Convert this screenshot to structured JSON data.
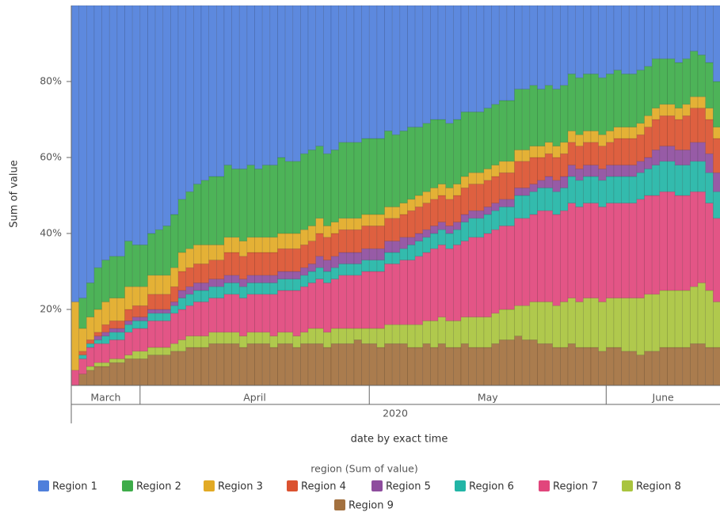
{
  "chart_data": {
    "type": "stacked_bar_100",
    "y_label": "Sum of value",
    "x_label": "date by exact time",
    "x_group_label": "2020",
    "legend_title": "region (Sum of value)",
    "ylim": [
      0,
      100
    ],
    "yticks": [
      {
        "value": 20,
        "label": "20%"
      },
      {
        "value": 40,
        "label": "40%"
      },
      {
        "value": 60,
        "label": "60%"
      },
      {
        "value": 80,
        "label": "80%"
      }
    ],
    "categories": [
      "March",
      "March",
      "March",
      "March",
      "March",
      "March",
      "March",
      "March",
      "March",
      "April",
      "April",
      "April",
      "April",
      "April",
      "April",
      "April",
      "April",
      "April",
      "April",
      "April",
      "April",
      "April",
      "April",
      "April",
      "April",
      "April",
      "April",
      "April",
      "April",
      "April",
      "April",
      "April",
      "April",
      "April",
      "April",
      "April",
      "April",
      "April",
      "April",
      "May",
      "May",
      "May",
      "May",
      "May",
      "May",
      "May",
      "May",
      "May",
      "May",
      "May",
      "May",
      "May",
      "May",
      "May",
      "May",
      "May",
      "May",
      "May",
      "May",
      "May",
      "May",
      "May",
      "May",
      "May",
      "May",
      "May",
      "May",
      "May",
      "May",
      "May",
      "June",
      "June",
      "June",
      "June",
      "June",
      "June",
      "June",
      "June",
      "June",
      "June",
      "June",
      "June",
      "June",
      "June",
      "June"
    ],
    "series": [
      {
        "name": "Region 1",
        "color": "#4f7fdb",
        "values": [
          78,
          77,
          73,
          69,
          67,
          66,
          66,
          62,
          63,
          63,
          60,
          59,
          58,
          55,
          51,
          49,
          47,
          46,
          45,
          45,
          42,
          43,
          43,
          42,
          43,
          42,
          42,
          40,
          41,
          41,
          39,
          38,
          37,
          39,
          38,
          36,
          36,
          36,
          35,
          35,
          35,
          33,
          34,
          33,
          32,
          32,
          31,
          30,
          30,
          31,
          30,
          28,
          28,
          28,
          27,
          26,
          25,
          25,
          22,
          22,
          21,
          22,
          21,
          22,
          21,
          18,
          19,
          18,
          18,
          19,
          18,
          17,
          18,
          18,
          17,
          16,
          14,
          14,
          14,
          15,
          14,
          12,
          13,
          15,
          20
        ]
      },
      {
        "name": "Region 2",
        "color": "#3eac4a",
        "values": [
          0,
          8,
          9,
          11,
          11,
          11,
          11,
          12,
          11,
          11,
          11,
          12,
          13,
          14,
          14,
          15,
          16,
          17,
          18,
          18,
          19,
          18,
          19,
          19,
          18,
          19,
          19,
          20,
          19,
          19,
          20,
          20,
          19,
          19,
          19,
          20,
          20,
          20,
          20,
          20,
          20,
          20,
          19,
          19,
          19,
          18,
          18,
          18,
          17,
          17,
          17,
          17,
          16,
          16,
          16,
          16,
          16,
          16,
          16,
          16,
          16,
          15,
          15,
          15,
          15,
          15,
          15,
          15,
          15,
          15,
          15,
          15,
          14,
          14,
          14,
          13,
          13,
          12,
          12,
          12,
          12,
          12,
          11,
          12,
          12
        ]
      },
      {
        "name": "Region 3",
        "color": "#e2aa25",
        "values": [
          18,
          6,
          6,
          6,
          6,
          6,
          6,
          6,
          5,
          5,
          5,
          5,
          5,
          5,
          5,
          5,
          5,
          5,
          4,
          4,
          4,
          4,
          4,
          4,
          4,
          4,
          4,
          4,
          4,
          4,
          4,
          4,
          4,
          3,
          3,
          3,
          3,
          3,
          3,
          3,
          3,
          3,
          3,
          3,
          3,
          3,
          3,
          3,
          3,
          3,
          3,
          3,
          3,
          3,
          3,
          3,
          3,
          3,
          3,
          3,
          3,
          3,
          3,
          3,
          3,
          3,
          3,
          3,
          3,
          3,
          3,
          3,
          3,
          3,
          3,
          3,
          3,
          3,
          3,
          3,
          3,
          3,
          3,
          3,
          3
        ]
      },
      {
        "name": "Region 4",
        "color": "#db5230",
        "values": [
          0,
          1,
          1,
          1,
          2,
          2,
          2,
          3,
          3,
          3,
          4,
          4,
          4,
          4,
          5,
          5,
          5,
          5,
          5,
          5,
          6,
          6,
          6,
          6,
          6,
          6,
          6,
          6,
          6,
          6,
          6,
          6,
          6,
          6,
          6,
          6,
          6,
          6,
          6,
          6,
          6,
          6,
          6,
          6,
          7,
          7,
          7,
          7,
          7,
          7,
          7,
          7,
          7,
          7,
          7,
          7,
          7,
          7,
          7,
          7,
          7,
          6,
          6,
          6,
          6,
          6,
          6,
          6,
          6,
          6,
          6,
          7,
          7,
          7,
          7,
          8,
          8,
          8,
          8,
          8,
          9,
          9,
          9,
          9,
          9
        ]
      },
      {
        "name": "Region 5",
        "color": "#8e4d9e",
        "values": [
          0,
          0,
          0,
          1,
          1,
          1,
          1,
          1,
          1,
          1,
          1,
          1,
          1,
          1,
          2,
          2,
          2,
          2,
          2,
          2,
          2,
          2,
          2,
          2,
          2,
          2,
          2,
          2,
          2,
          2,
          2,
          2,
          3,
          3,
          3,
          3,
          3,
          3,
          3,
          3,
          3,
          3,
          3,
          3,
          2,
          2,
          2,
          2,
          2,
          2,
          2,
          2,
          2,
          2,
          2,
          2,
          2,
          2,
          2,
          2,
          2,
          2,
          3,
          3,
          3,
          3,
          3,
          3,
          3,
          3,
          3,
          3,
          3,
          3,
          3,
          3,
          4,
          4,
          4,
          4,
          4,
          5,
          5,
          5,
          5
        ]
      },
      {
        "name": "Region 6",
        "color": "#22b5a6",
        "values": [
          0,
          1,
          1,
          1,
          2,
          2,
          2,
          2,
          2,
          2,
          2,
          2,
          2,
          2,
          3,
          3,
          3,
          3,
          3,
          3,
          3,
          3,
          3,
          3,
          3,
          3,
          3,
          3,
          3,
          3,
          3,
          3,
          3,
          3,
          3,
          3,
          3,
          3,
          3,
          3,
          3,
          3,
          3,
          3,
          4,
          4,
          4,
          4,
          4,
          4,
          4,
          5,
          5,
          5,
          5,
          5,
          5,
          5,
          6,
          6,
          6,
          6,
          6,
          6,
          6,
          7,
          7,
          7,
          7,
          7,
          7,
          7,
          7,
          7,
          7,
          7,
          8,
          8,
          8,
          8,
          8,
          8,
          8,
          8,
          7
        ]
      },
      {
        "name": "Region 7",
        "color": "#e1467c",
        "values": [
          4,
          4,
          5,
          5,
          5,
          5,
          5,
          6,
          6,
          6,
          7,
          7,
          7,
          8,
          8,
          8,
          9,
          9,
          9,
          9,
          10,
          10,
          10,
          10,
          10,
          10,
          11,
          11,
          11,
          12,
          12,
          12,
          13,
          13,
          13,
          14,
          14,
          14,
          15,
          15,
          15,
          16,
          16,
          17,
          17,
          18,
          18,
          19,
          19,
          19,
          20,
          20,
          21,
          21,
          22,
          22,
          22,
          22,
          23,
          23,
          23,
          24,
          24,
          24,
          24,
          25,
          25,
          25,
          25,
          25,
          25,
          25,
          25,
          25,
          26,
          26,
          26,
          26,
          26,
          25,
          25,
          25,
          24,
          23,
          22
        ]
      },
      {
        "name": "Region 8",
        "color": "#a9c43e",
        "values": [
          0,
          0,
          1,
          1,
          1,
          1,
          1,
          1,
          2,
          2,
          2,
          2,
          2,
          2,
          3,
          3,
          3,
          3,
          3,
          3,
          3,
          3,
          3,
          3,
          3,
          3,
          3,
          3,
          3,
          3,
          3,
          4,
          4,
          4,
          4,
          4,
          4,
          3,
          4,
          4,
          5,
          5,
          5,
          5,
          6,
          6,
          6,
          7,
          7,
          7,
          7,
          7,
          8,
          8,
          8,
          8,
          8,
          8,
          8,
          9,
          10,
          11,
          11,
          11,
          12,
          12,
          12,
          13,
          13,
          13,
          13,
          13,
          14,
          14,
          15,
          15,
          15,
          15,
          15,
          15,
          15,
          15,
          16,
          15,
          12
        ]
      },
      {
        "name": "Region 9",
        "color": "#a3713f",
        "values": [
          0,
          3,
          4,
          5,
          5,
          6,
          6,
          7,
          7,
          7,
          8,
          8,
          8,
          9,
          9,
          10,
          10,
          10,
          11,
          11,
          11,
          11,
          10,
          11,
          11,
          11,
          10,
          11,
          11,
          10,
          11,
          11,
          11,
          10,
          11,
          11,
          11,
          12,
          11,
          11,
          10,
          11,
          11,
          11,
          10,
          10,
          11,
          10,
          11,
          10,
          10,
          11,
          10,
          10,
          10,
          11,
          12,
          12,
          13,
          12,
          12,
          11,
          11,
          10,
          10,
          11,
          10,
          10,
          10,
          9,
          10,
          10,
          9,
          9,
          8,
          9,
          9,
          10,
          10,
          10,
          10,
          11,
          11,
          10,
          10
        ]
      }
    ]
  }
}
